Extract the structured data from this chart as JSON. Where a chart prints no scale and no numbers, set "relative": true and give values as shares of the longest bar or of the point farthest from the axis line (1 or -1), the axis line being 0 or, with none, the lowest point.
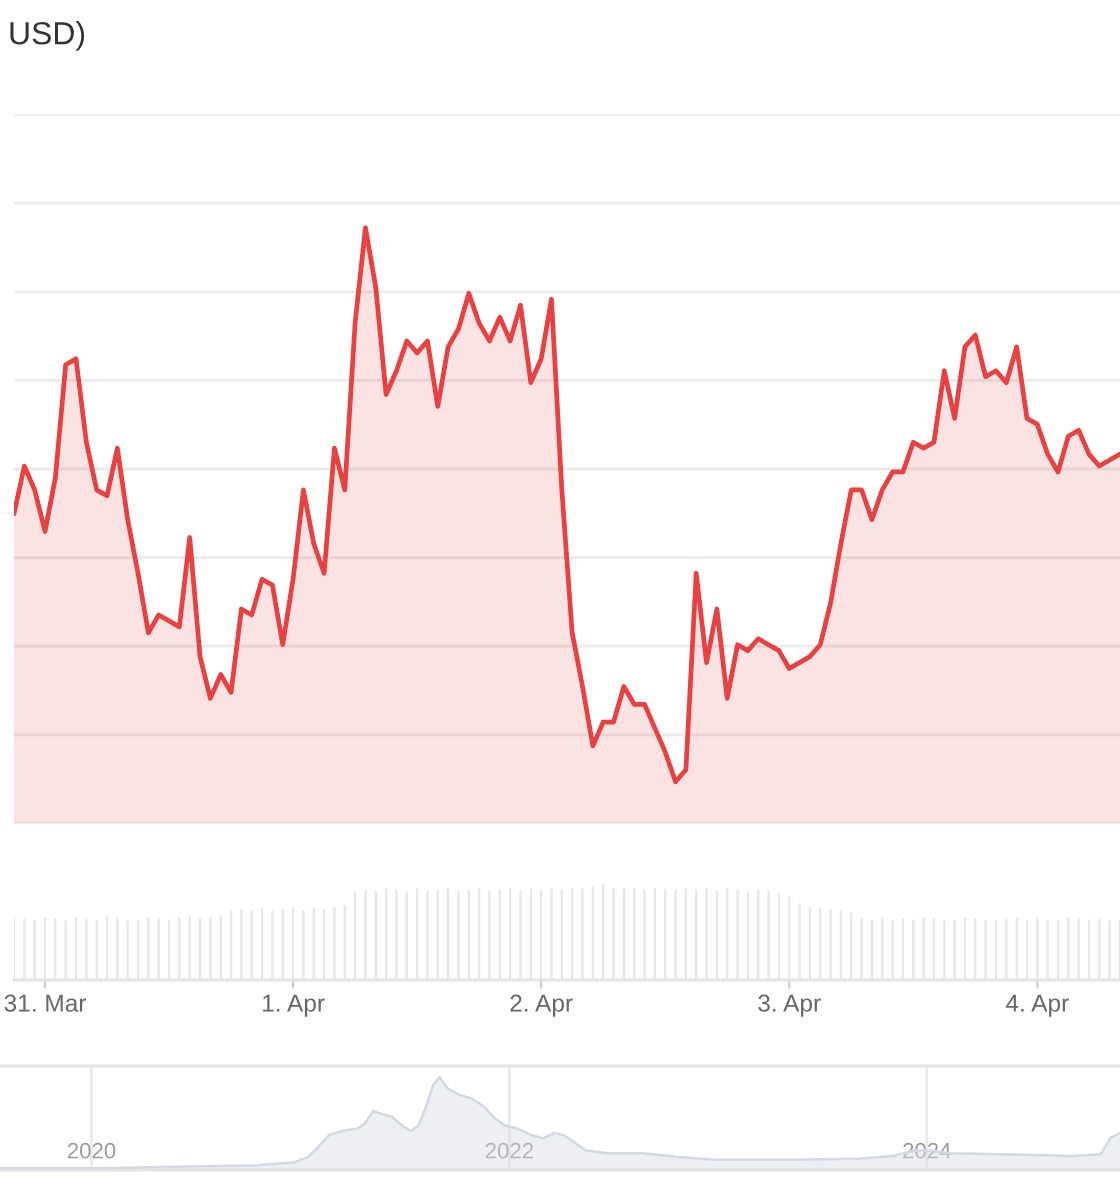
{
  "chart_data": [
    {
      "type": "area",
      "title": "USD)",
      "relative": true,
      "grid": "y",
      "categories": [
        null,
        null,
        null,
        null,
        null,
        null,
        null,
        null,
        null,
        null,
        null,
        null,
        null,
        null,
        null,
        null,
        null,
        null,
        null,
        null,
        null,
        null,
        null,
        null,
        null,
        null,
        null,
        null,
        null,
        null,
        null,
        null,
        null,
        null,
        null,
        null,
        null,
        null,
        null,
        null,
        null,
        null,
        null,
        null,
        null,
        null,
        null,
        null,
        null,
        null,
        null,
        null,
        null,
        null,
        null,
        null,
        null,
        null,
        null,
        null,
        null,
        null,
        null,
        null,
        null,
        null,
        null,
        null,
        null,
        null,
        null,
        null,
        null,
        null,
        null,
        null,
        null,
        null,
        null,
        null,
        null,
        null,
        null,
        null,
        null,
        null,
        null,
        null,
        null,
        null,
        null,
        null,
        null,
        null,
        null,
        null,
        null,
        null,
        null,
        null,
        null,
        null,
        null,
        null,
        null,
        null,
        null,
        null
      ],
      "series": [
        {
          "color": "#e84142",
          "values": [
            0.52,
            0.6,
            0.56,
            0.49,
            0.58,
            0.77,
            0.78,
            0.64,
            0.56,
            0.55,
            0.63,
            0.51,
            0.42,
            0.32,
            0.35,
            0.34,
            0.33,
            0.48,
            0.28,
            0.21,
            0.25,
            0.22,
            0.36,
            0.35,
            0.41,
            0.4,
            0.3,
            0.41,
            0.56,
            0.47,
            0.42,
            0.63,
            0.56,
            0.84,
            1.0,
            0.9,
            0.72,
            0.76,
            0.81,
            0.79,
            0.81,
            0.7,
            0.8,
            0.83,
            0.89,
            0.84,
            0.81,
            0.85,
            0.81,
            0.87,
            0.74,
            0.78,
            0.88,
            0.56,
            0.32,
            0.23,
            0.13,
            0.17,
            0.17,
            0.23,
            0.2,
            0.2,
            0.16,
            0.12,
            0.07,
            0.09,
            0.42,
            0.27,
            0.36,
            0.21,
            0.3,
            0.29,
            0.31,
            0.3,
            0.29,
            0.26,
            0.27,
            0.28,
            0.3,
            0.37,
            0.47,
            0.56,
            0.56,
            0.51,
            0.56,
            0.59,
            0.59,
            0.64,
            0.63,
            0.64,
            0.76,
            0.68,
            0.8,
            0.82,
            0.75,
            0.76,
            0.74,
            0.8,
            0.68,
            0.67,
            0.62,
            0.59,
            0.65,
            0.66,
            0.62,
            0.6,
            0.61,
            0.62
          ]
        }
      ]
    },
    {
      "type": "bar",
      "relative": true,
      "categories": [
        null,
        null,
        null,
        "31. Mar",
        null,
        null,
        null,
        null,
        null,
        null,
        null,
        null,
        null,
        null,
        null,
        null,
        null,
        null,
        null,
        null,
        null,
        null,
        null,
        null,
        null,
        null,
        null,
        "1. Apr",
        null,
        null,
        null,
        null,
        null,
        null,
        null,
        null,
        null,
        null,
        null,
        null,
        null,
        null,
        null,
        null,
        null,
        null,
        null,
        null,
        null,
        null,
        null,
        "2. Apr",
        null,
        null,
        null,
        null,
        null,
        null,
        null,
        null,
        null,
        null,
        null,
        null,
        null,
        null,
        null,
        null,
        null,
        null,
        null,
        null,
        null,
        null,
        null,
        "3. Apr",
        null,
        null,
        null,
        null,
        null,
        null,
        null,
        null,
        null,
        null,
        null,
        null,
        null,
        null,
        null,
        null,
        null,
        null,
        null,
        null,
        null,
        null,
        null,
        "4. Apr",
        null,
        null,
        null,
        null,
        null,
        null,
        null,
        null
      ],
      "series": [
        {
          "color": "#e6e6eb",
          "values": [
            0.66,
            0.64,
            0.63,
            0.65,
            0.64,
            0.62,
            0.65,
            0.64,
            0.63,
            0.66,
            0.64,
            0.62,
            0.63,
            0.65,
            0.64,
            0.63,
            0.65,
            0.66,
            0.64,
            0.65,
            0.67,
            0.72,
            0.74,
            0.73,
            0.75,
            0.72,
            0.74,
            0.76,
            0.73,
            0.75,
            0.74,
            0.76,
            0.78,
            0.92,
            0.94,
            0.93,
            0.95,
            0.94,
            0.92,
            0.95,
            0.93,
            0.94,
            0.95,
            0.93,
            0.94,
            0.95,
            0.93,
            0.94,
            0.96,
            0.93,
            0.95,
            0.94,
            0.95,
            0.94,
            0.96,
            0.95,
            0.97,
            1.0,
            0.96,
            0.95,
            0.96,
            0.94,
            0.96,
            0.95,
            0.94,
            0.95,
            0.94,
            0.96,
            0.93,
            0.95,
            0.94,
            0.92,
            0.94,
            0.93,
            0.9,
            0.88,
            0.8,
            0.76,
            0.75,
            0.74,
            0.72,
            0.7,
            0.64,
            0.63,
            0.65,
            0.62,
            0.64,
            0.63,
            0.65,
            0.64,
            0.62,
            0.63,
            0.65,
            0.64,
            0.63,
            0.62,
            0.64,
            0.65,
            0.63,
            0.64,
            0.62,
            0.63,
            0.65,
            0.64,
            0.63,
            0.64,
            0.62,
            0.63
          ]
        }
      ]
    },
    {
      "type": "area",
      "relative": true,
      "xlim": [
        "2019-07-25",
        "2024-12-04"
      ],
      "grid": "x",
      "xticks": [
        {
          "value": "2020",
          "label": "2020"
        },
        {
          "value": "2022",
          "label": "2022"
        },
        {
          "value": "2024",
          "label": "2024"
        }
      ],
      "x": [
        "2019-07-25",
        "2020-01-17",
        "2020-07-10",
        "2020-10-18",
        "2020-12-19",
        "2021-01-14",
        "2021-02-01",
        "2021-02-20",
        "2021-03-16",
        "2021-04-11",
        "2021-04-23",
        "2021-05-08",
        "2021-05-24",
        "2021-06-10",
        "2021-06-27",
        "2021-07-13",
        "2021-07-26",
        "2021-08-08",
        "2021-08-21",
        "2021-09-01",
        "2021-09-15",
        "2021-10-05",
        "2021-10-27",
        "2021-11-16",
        "2021-12-06",
        "2021-12-24",
        "2022-01-13",
        "2022-02-07",
        "2022-03-01",
        "2022-03-21",
        "2022-04-08",
        "2022-04-26",
        "2022-05-15",
        "2022-06-22",
        "2022-08-23",
        "2022-10-24",
        "2022-12-26",
        "2023-04-30",
        "2023-09-02",
        "2023-11-03",
        "2023-12-11",
        "2024-01-05",
        "2024-02-11",
        "2024-05-09",
        "2024-09-11",
        "2024-10-31",
        "2024-11-18",
        "2024-12-04"
      ],
      "series": [
        {
          "color": "#d3d8e1",
          "values": [
            0.02,
            0.02,
            0.04,
            0.05,
            0.08,
            0.14,
            0.25,
            0.38,
            0.42,
            0.45,
            0.5,
            0.64,
            0.6,
            0.57,
            0.48,
            0.42,
            0.48,
            0.68,
            0.92,
            1.0,
            0.88,
            0.81,
            0.77,
            0.69,
            0.56,
            0.48,
            0.45,
            0.38,
            0.34,
            0.4,
            0.37,
            0.29,
            0.21,
            0.18,
            0.18,
            0.14,
            0.11,
            0.11,
            0.12,
            0.15,
            0.21,
            0.21,
            0.18,
            0.17,
            0.15,
            0.17,
            0.35,
            0.4
          ]
        }
      ]
    }
  ]
}
